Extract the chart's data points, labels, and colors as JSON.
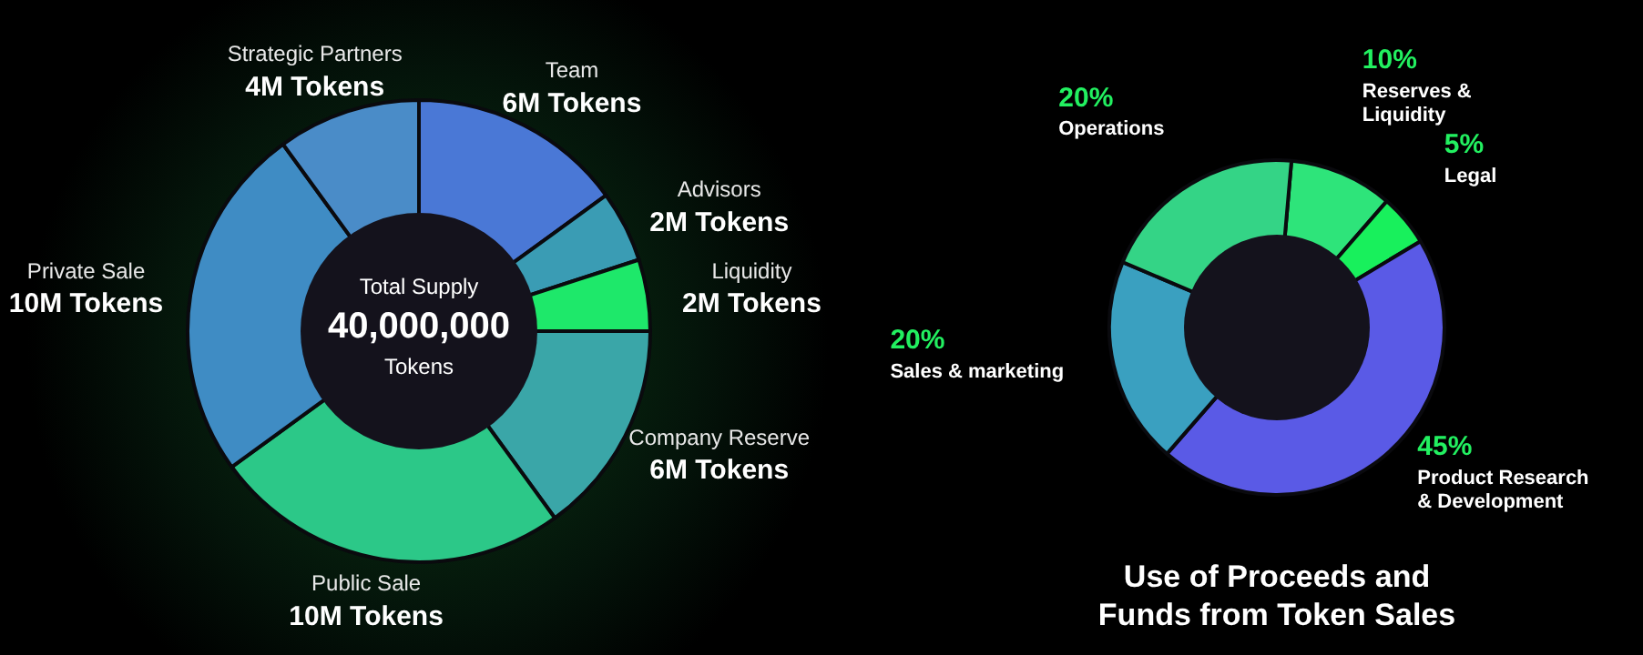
{
  "chart_data": [
    {
      "type": "donut",
      "categories": [
        "Team",
        "Advisors",
        "Liquidity",
        "Company Reserve",
        "Public Sale",
        "Private Sale",
        "Strategic Partners"
      ],
      "values": [
        6,
        2,
        2,
        6,
        10,
        10,
        4
      ],
      "value_labels": [
        "6M Tokens",
        "2M Tokens",
        "2M Tokens",
        "6M Tokens",
        "10M Tokens",
        "10M Tokens",
        "4M Tokens"
      ],
      "colors": [
        "#4a78d6",
        "#3a9cb4",
        "#1ee86a",
        "#3aa6a8",
        "#2cc888",
        "#3f8cc4",
        "#4a8cc8"
      ],
      "annotations": [
        "Total Supply",
        "40,000,000",
        "Tokens"
      ]
    },
    {
      "type": "donut",
      "title": "Use of Proceeds and Funds from Token Sales",
      "categories": [
        "Reserves & Liquidity",
        "Legal",
        "Product Research & Development",
        "Sales & marketing",
        "Operations"
      ],
      "values": [
        10,
        5,
        45,
        20,
        20
      ],
      "value_labels": [
        "10%",
        "5%",
        "45%",
        "20%",
        "20%"
      ],
      "colors": [
        "#2ee47a",
        "#18f05c",
        "#5a5ae6",
        "#3aa0c0",
        "#34d486"
      ]
    }
  ]
}
